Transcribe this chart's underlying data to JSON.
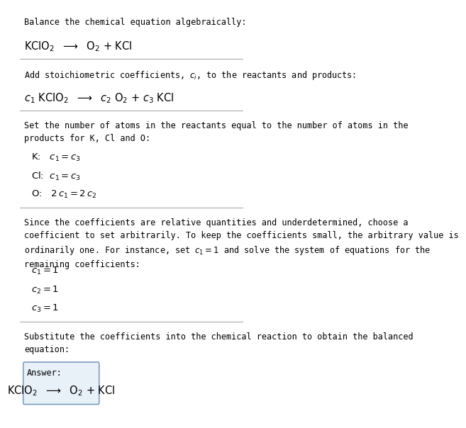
{
  "bg_color": "#ffffff",
  "text_color": "#000000",
  "line_color": "#aaaaaa",
  "section1_title": "Balance the chemical equation algebraically:",
  "section1_eq": "KClO$_2$  $\\longrightarrow$  O$_2$ + KCl",
  "section2_title": "Add stoichiometric coefficients, $c_i$, to the reactants and products:",
  "section2_eq": "$c_1$ KClO$_2$  $\\longrightarrow$  $c_2$ O$_2$ + $c_3$ KCl",
  "section3_title": "Set the number of atoms in the reactants equal to the number of atoms in the\nproducts for K, Cl and O:",
  "section3_lines": [
    "K:   $c_1 = c_3$",
    "Cl:  $c_1 = c_3$",
    "O:   $2\\,c_1 = 2\\,c_2$"
  ],
  "section4_title": "Since the coefficients are relative quantities and underdetermined, choose a\ncoefficient to set arbitrarily. To keep the coefficients small, the arbitrary value is\nordinarily one. For instance, set $c_1 = 1$ and solve the system of equations for the\nremaining coefficients:",
  "section4_lines": [
    "$c_1 = 1$",
    "$c_2 = 1$",
    "$c_3 = 1$"
  ],
  "section5_title": "Substitute the coefficients into the chemical reaction to obtain the balanced\nequation:",
  "answer_label": "Answer:",
  "answer_eq": "KClO$_2$  $\\longrightarrow$  O$_2$ + KCl",
  "answer_box_color": "#e8f0f8",
  "answer_box_edge": "#7aa0c0"
}
